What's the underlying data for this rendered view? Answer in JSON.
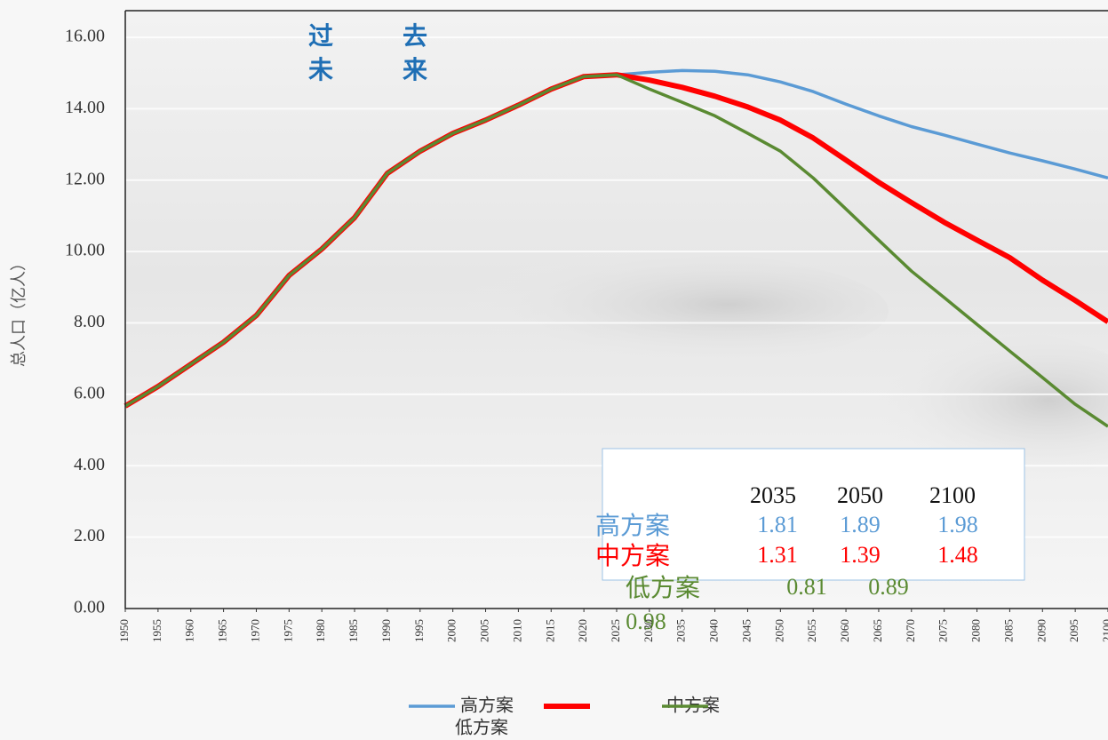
{
  "chart_data": {
    "type": "line",
    "y_label": "总人口（亿人）",
    "annotations": [
      "过去",
      "未来"
    ],
    "x": [
      1950,
      1955,
      1960,
      1965,
      1970,
      1975,
      1980,
      1985,
      1990,
      1995,
      2000,
      2005,
      2010,
      2015,
      2020,
      2025,
      2030,
      2035,
      2040,
      2045,
      2050,
      2055,
      2060,
      2065,
      2070,
      2075,
      2080,
      2085,
      2090,
      2095,
      2100
    ],
    "xlim": [
      1950,
      2100
    ],
    "xticks": [
      1950,
      1955,
      1960,
      1965,
      1970,
      1975,
      1980,
      1985,
      1990,
      1995,
      2000,
      2005,
      2010,
      2015,
      2020,
      2025,
      2030,
      2035,
      2040,
      2045,
      2050,
      2055,
      2060,
      2065,
      2070,
      2075,
      2080,
      2085,
      2090,
      2095,
      2100
    ],
    "ylim": [
      0,
      16
    ],
    "yticks": [
      {
        "value": 0,
        "label": "0.00"
      },
      {
        "value": 2,
        "label": "2.00"
      },
      {
        "value": 4,
        "label": "4.00"
      },
      {
        "value": 6,
        "label": "6.00"
      },
      {
        "value": 8,
        "label": "8.00"
      },
      {
        "value": 10,
        "label": "10.00"
      },
      {
        "value": 12,
        "label": "12.00"
      },
      {
        "value": 14,
        "label": "14.00"
      },
      {
        "value": 16,
        "label": "16.00"
      }
    ],
    "grid": true,
    "series": [
      {
        "name": "高方案",
        "color": "#5b9bd5",
        "values": [
          5.67,
          6.22,
          6.84,
          7.46,
          8.21,
          9.33,
          10.07,
          10.95,
          12.19,
          12.81,
          13.31,
          13.68,
          14.1,
          14.55,
          14.9,
          14.95,
          15.02,
          15.07,
          15.05,
          14.95,
          14.75,
          14.48,
          14.13,
          13.8,
          13.5,
          13.26,
          13.01,
          12.76,
          12.54,
          12.31,
          12.06
        ]
      },
      {
        "name": "中方案",
        "color": "#ff0000",
        "values": [
          5.67,
          6.22,
          6.84,
          7.46,
          8.21,
          9.33,
          10.07,
          10.95,
          12.19,
          12.81,
          13.31,
          13.68,
          14.1,
          14.55,
          14.9,
          14.95,
          14.8,
          14.6,
          14.35,
          14.05,
          13.68,
          13.18,
          12.56,
          11.94,
          11.37,
          10.82,
          10.32,
          9.83,
          9.2,
          8.63,
          8.03
        ]
      },
      {
        "name": "低方案",
        "color": "#5a8a32",
        "values": [
          5.67,
          6.22,
          6.84,
          7.46,
          8.21,
          9.33,
          10.07,
          10.95,
          12.19,
          12.81,
          13.31,
          13.68,
          14.1,
          14.55,
          14.9,
          14.95,
          14.55,
          14.18,
          13.8,
          13.31,
          12.81,
          12.06,
          11.19,
          10.32,
          9.45,
          8.71,
          7.96,
          7.21,
          6.47,
          5.72,
          5.1
        ]
      }
    ],
    "table": {
      "header": [
        "2035",
        "2050",
        "2100"
      ],
      "rows": [
        [
          "高方案",
          "1.81",
          "1.89",
          "1.98"
        ],
        [
          "中方案",
          "1.31",
          "1.39",
          "1.48"
        ],
        [
          "低方案",
          "0.81",
          "0.89",
          "0.98"
        ]
      ]
    }
  }
}
